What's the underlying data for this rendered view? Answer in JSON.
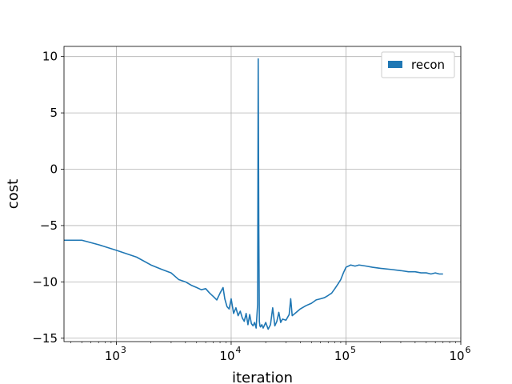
{
  "chart_data": {
    "type": "line",
    "xscale": "log",
    "xlim": [
      350,
      1000000
    ],
    "ylim": [
      -15.3,
      10.9
    ],
    "grid": true,
    "xlabel": "iteration",
    "ylabel": "cost",
    "x_ticks": [
      {
        "value": 1000,
        "label": "10",
        "exp": "3"
      },
      {
        "value": 10000,
        "label": "10",
        "exp": "4"
      },
      {
        "value": 100000,
        "label": "10",
        "exp": "5"
      },
      {
        "value": 1000000,
        "label": "10",
        "exp": "6"
      }
    ],
    "y_ticks": [
      {
        "value": 10,
        "label": "10"
      },
      {
        "value": 5,
        "label": "5"
      },
      {
        "value": 0,
        "label": "0"
      },
      {
        "value": -5,
        "label": "−5"
      },
      {
        "value": -10,
        "label": "−10"
      },
      {
        "value": -15,
        "label": "−15"
      }
    ],
    "legend": {
      "position": "top-right"
    },
    "series": [
      {
        "name": "recon",
        "color": "#1f77b4",
        "x": [
          350,
          500,
          700,
          1000,
          1500,
          2000,
          2500,
          3000,
          3500,
          4000,
          4500,
          5000,
          5500,
          6000,
          6500,
          7000,
          7500,
          8000,
          8500,
          8800,
          9200,
          9600,
          10000,
          10500,
          11000,
          11500,
          12000,
          12500,
          13000,
          13500,
          14000,
          14500,
          15000,
          15500,
          16000,
          16500,
          17000,
          17200,
          17400,
          17600,
          17800,
          18000,
          18500,
          19000,
          20000,
          21000,
          22000,
          23000,
          24000,
          25000,
          26000,
          27000,
          28000,
          30000,
          32000,
          33000,
          34000,
          36000,
          40000,
          45000,
          50000,
          55000,
          60000,
          65000,
          70000,
          75000,
          80000,
          85000,
          90000,
          95000,
          100000,
          110000,
          120000,
          130000,
          150000,
          170000,
          200000,
          250000,
          300000,
          350000,
          400000,
          450000,
          500000,
          550000,
          600000,
          650000,
          700000
        ],
        "y": [
          -6.3,
          -6.3,
          -6.7,
          -7.2,
          -7.8,
          -8.5,
          -8.9,
          -9.2,
          -9.8,
          -10.0,
          -10.3,
          -10.5,
          -10.7,
          -10.6,
          -11.0,
          -11.3,
          -11.6,
          -11.0,
          -10.5,
          -11.5,
          -12.2,
          -12.4,
          -11.5,
          -12.8,
          -12.3,
          -13.0,
          -12.6,
          -13.2,
          -13.5,
          -12.8,
          -13.8,
          -12.9,
          -13.7,
          -13.9,
          -13.6,
          -14.1,
          -12.0,
          9.8,
          -5.0,
          -13.5,
          -13.9,
          -14.0,
          -13.8,
          -14.1,
          -13.6,
          -14.2,
          -13.8,
          -12.3,
          -13.9,
          -13.5,
          -12.7,
          -13.6,
          -13.3,
          -13.4,
          -12.9,
          -11.5,
          -13.0,
          -12.8,
          -12.4,
          -12.1,
          -11.9,
          -11.6,
          -11.5,
          -11.4,
          -11.2,
          -11.0,
          -10.6,
          -10.2,
          -9.8,
          -9.2,
          -8.7,
          -8.5,
          -8.6,
          -8.5,
          -8.6,
          -8.7,
          -8.8,
          -8.9,
          -9.0,
          -9.1,
          -9.1,
          -9.2,
          -9.2,
          -9.3,
          -9.2,
          -9.3,
          -9.3
        ]
      }
    ]
  }
}
